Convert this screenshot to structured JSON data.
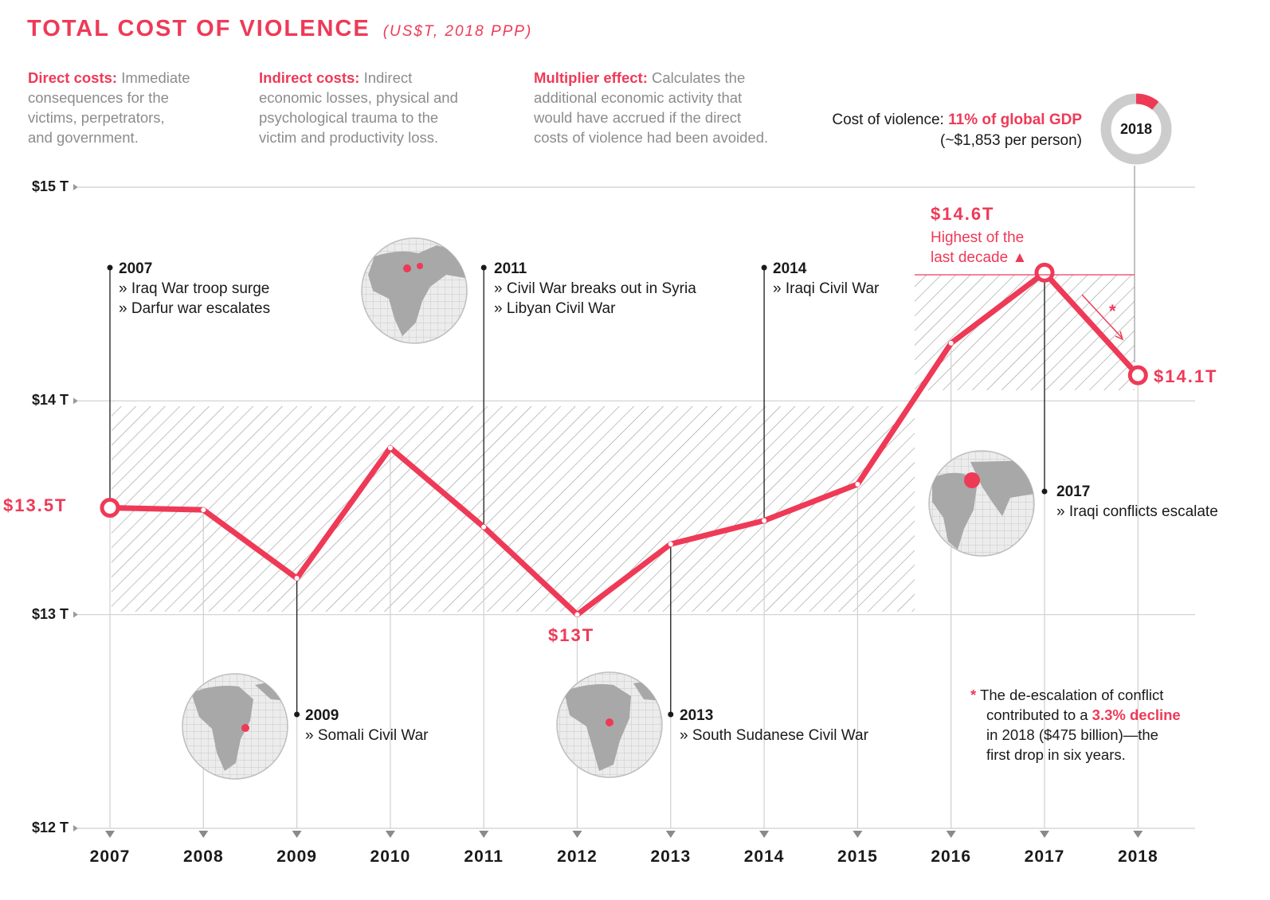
{
  "header": {
    "title": "TOTAL COST OF VIOLENCE",
    "subtitle": "(US$T, 2018 PPP)"
  },
  "definitions": [
    {
      "term": "Direct costs:",
      "text": "Immediate",
      "lines": [
        "consequences for the",
        "victims, perpetrators,",
        "and government."
      ]
    },
    {
      "term": "Indirect costs:",
      "text": "Indirect",
      "lines": [
        "economic losses, physical and",
        "psychological trauma to the",
        "victim and productivity loss."
      ]
    },
    {
      "term": "Multiplier effect:",
      "text": "Calculates the",
      "lines": [
        "additional economic activity that",
        "would have accrued if the direct",
        "costs of violence had been avoided."
      ]
    }
  ],
  "cost_of_violence": {
    "label": "Cost of violence:",
    "value": "11% of global GDP",
    "per_person": "(~$1,853 per person)",
    "donut_year": "2018",
    "donut_fraction": 0.11,
    "accent": "#ee3a57",
    "ring_color": "#cccccc"
  },
  "chart_data": {
    "type": "line",
    "x": [
      "2007",
      "2008",
      "2009",
      "2010",
      "2011",
      "2012",
      "2013",
      "2014",
      "2015",
      "2016",
      "2017",
      "2018"
    ],
    "series": [
      {
        "values": [
          13.5,
          13.49,
          13.17,
          13.78,
          13.41,
          13.0,
          13.33,
          13.44,
          13.61,
          14.27,
          14.6,
          14.12
        ]
      }
    ],
    "ylim": [
      12,
      15
    ],
    "yticks": [
      {
        "value": 15,
        "label": "$15 T"
      },
      {
        "value": 14,
        "label": "$14 T"
      },
      {
        "value": 13,
        "label": "$13 T"
      },
      {
        "value": 12,
        "label": "$12 T"
      }
    ],
    "grid": true,
    "line_color": "#ee3a57",
    "value_labels": {
      "start": "$13.5T",
      "low": "$13T",
      "peak": "$14.6T",
      "end": "$14.1T"
    },
    "peak_note": [
      "Highest of the",
      "last decade ▲"
    ],
    "events": [
      {
        "year": "2007",
        "items": [
          "» Iraq War troop surge",
          "» Darfur war escalates"
        ]
      },
      {
        "year": "2009",
        "items": [
          "» Somali Civil War"
        ]
      },
      {
        "year": "2011",
        "items": [
          "» Civil War breaks out in Syria",
          "» Libyan Civil War"
        ]
      },
      {
        "year": "2013",
        "items": [
          "» South Sudanese Civil War"
        ]
      },
      {
        "year": "2014",
        "items": [
          "» Iraqi Civil War"
        ]
      },
      {
        "year": "2017",
        "items": [
          "» Iraqi conflicts escalate"
        ]
      }
    ],
    "decline_marker": "*",
    "footnote": {
      "star": "*",
      "line1": "The de-escalation of conflict",
      "line2_pre": "contributed to a ",
      "line2_hl": "3.3% decline",
      "line3": "in 2018 ($475 billion)—the",
      "line4": "first drop in six years."
    }
  }
}
